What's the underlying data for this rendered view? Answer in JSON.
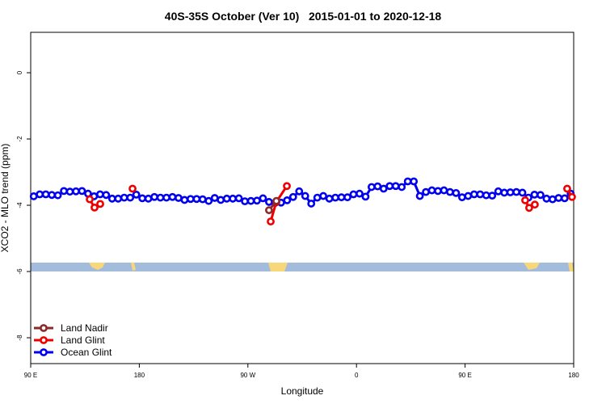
{
  "chart_data": {
    "type": "line",
    "title": "40S-35S October (Ver 10)   2015-01-01 to 2020-12-18",
    "xlabel": "Longitude",
    "ylabel": "XCO2 - MLO trend (ppm)",
    "xlim": [
      90,
      540
    ],
    "ylim": [
      -8.78,
      1.22
    ],
    "xticks": [
      {
        "value": 90,
        "label": "90 E"
      },
      180,
      {
        "value": 270,
        "label": "90 W"
      },
      {
        "value": 360,
        "label": "0"
      },
      {
        "value": 450,
        "label": "90 E"
      },
      {
        "value": 540,
        "label": "180"
      }
    ],
    "yticks": [
      -8,
      -6,
      -4,
      -2,
      0
    ],
    "legend": "bottomleft",
    "series": [
      {
        "name": "Land Nadir",
        "color": "#8b2a2a",
        "x": [
          287.5,
          293.6
        ],
        "values": [
          -4.15,
          -3.87
        ]
      },
      {
        "name": "Land Glint",
        "color": "#ee0000",
        "x": [
          138.9,
          142.9,
          147.6,
          null,
          174.4,
          null,
          288.9,
          293.6,
          302.3,
          null,
          499.8,
          503.1,
          507.8,
          null,
          534.6,
          538.6
        ],
        "values": [
          -3.82,
          -4.07,
          -3.96,
          null,
          -3.5,
          null,
          -4.49,
          -3.9,
          -3.42,
          null,
          -3.85,
          -4.08,
          -3.98,
          null,
          -3.5,
          -3.75
        ]
      },
      {
        "name": "Ocean Glint",
        "color": "#0000ee",
        "x": [
          92.5,
          97.5,
          102.5,
          107.5,
          112.5,
          117.5,
          122.5,
          127.5,
          132.5,
          137.5,
          142.5,
          147.5,
          152.5,
          157.5,
          162.5,
          167.5,
          172.5,
          177.5,
          182.5,
          187.5,
          192.5,
          197.5,
          202.5,
          207.5,
          212.5,
          217.5,
          222.5,
          227.5,
          232.5,
          237.5,
          242.5,
          247.5,
          252.5,
          257.5,
          262.5,
          267.5,
          272.5,
          277.5,
          282.5,
          287.5,
          292.5,
          297.5,
          302.5,
          307.5,
          312.5,
          317.5,
          322.5,
          327.5,
          332.5,
          337.5,
          342.5,
          347.5,
          352.5,
          357.5,
          362.5,
          367.5,
          372.5,
          377.5,
          382.5,
          387.5,
          392.5,
          397.5,
          402.5,
          407.5,
          412.5,
          417.5,
          422.5,
          427.5,
          432.5,
          437.5,
          442.5,
          447.5,
          452.5,
          457.5,
          462.5,
          467.5,
          472.5,
          477.5,
          482.5,
          487.5,
          492.5,
          497.5,
          502.5,
          507.5,
          512.5,
          517.5,
          522.5,
          527.5,
          532.5,
          537.5
        ],
        "values": [
          -3.73,
          -3.67,
          -3.67,
          -3.69,
          -3.7,
          -3.57,
          -3.59,
          -3.58,
          -3.57,
          -3.65,
          -3.73,
          -3.67,
          -3.69,
          -3.8,
          -3.8,
          -3.77,
          -3.77,
          -3.68,
          -3.79,
          -3.8,
          -3.75,
          -3.77,
          -3.77,
          -3.75,
          -3.78,
          -3.84,
          -3.81,
          -3.81,
          -3.82,
          -3.87,
          -3.78,
          -3.84,
          -3.8,
          -3.8,
          -3.79,
          -3.88,
          -3.87,
          -3.86,
          -3.79,
          -3.9,
          -3.93,
          -3.92,
          -3.85,
          -3.75,
          -3.58,
          -3.72,
          -3.95,
          -3.77,
          -3.72,
          -3.8,
          -3.77,
          -3.76,
          -3.76,
          -3.67,
          -3.65,
          -3.74,
          -3.45,
          -3.43,
          -3.5,
          -3.42,
          -3.42,
          -3.45,
          -3.28,
          -3.28,
          -3.72,
          -3.6,
          -3.55,
          -3.57,
          -3.55,
          -3.6,
          -3.63,
          -3.76,
          -3.72,
          -3.67,
          -3.67,
          -3.7,
          -3.71,
          -3.58,
          -3.62,
          -3.61,
          -3.6,
          -3.62,
          -3.77,
          -3.68,
          -3.69,
          -3.8,
          -3.82,
          -3.78,
          -3.79,
          -3.65
        ]
      }
    ]
  }
}
